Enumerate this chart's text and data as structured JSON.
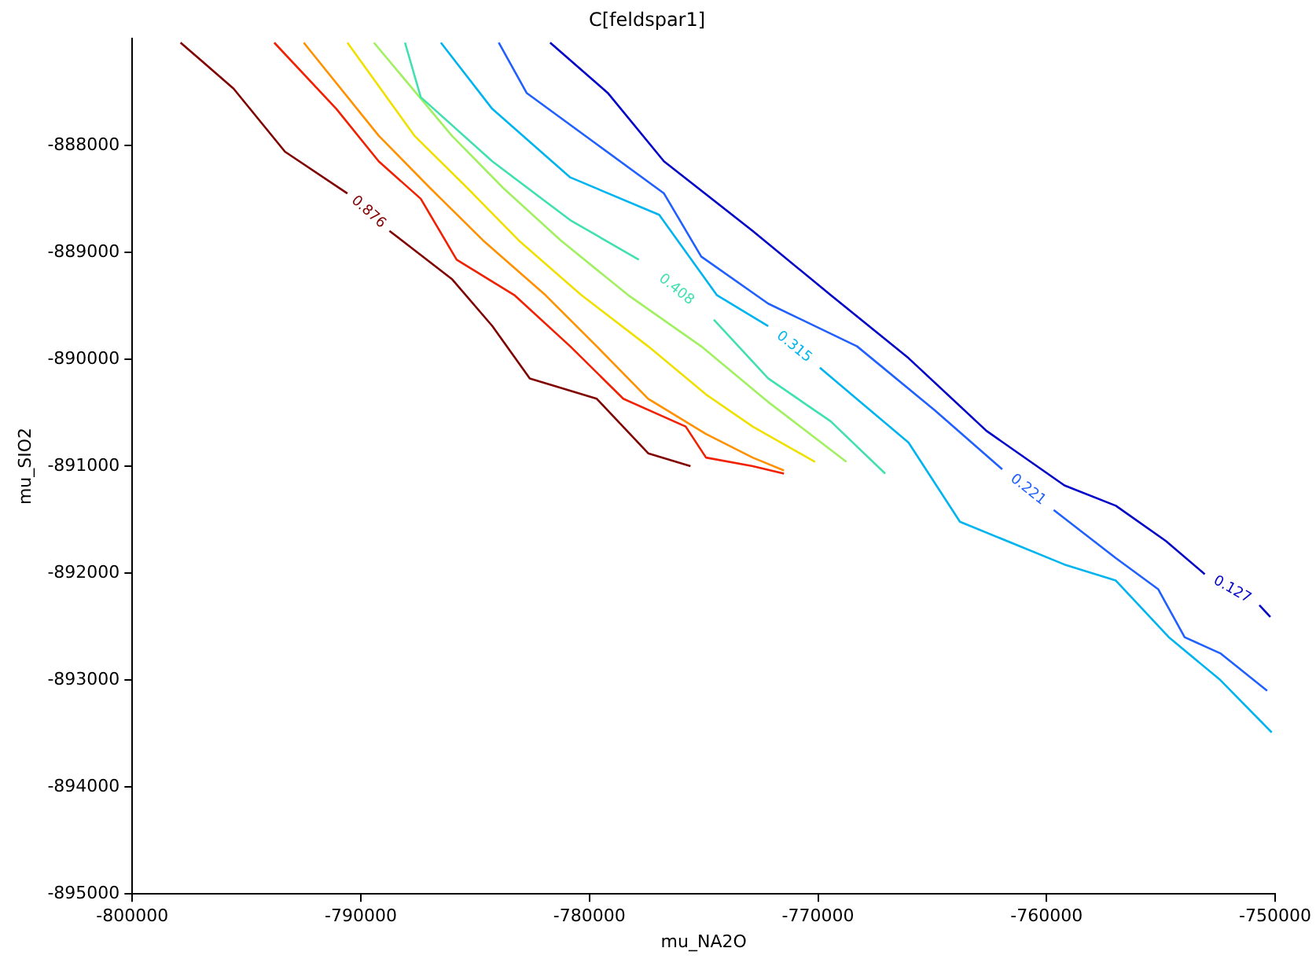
{
  "chart_data": {
    "type": "line",
    "title": "C[feldspar1]",
    "xlabel": "mu_NA2O",
    "ylabel": "mu_SIO2",
    "xlim": [
      -800000,
      -750000
    ],
    "xticks": [
      -800000,
      -790000,
      -780000,
      -770000,
      -760000,
      -750000
    ],
    "ylim": [
      -895000,
      -887000
    ],
    "yticks": [
      -895000,
      -894000,
      -893000,
      -892000,
      -891000,
      -890000,
      -889000,
      -888000
    ],
    "grid": false,
    "legend": false,
    "marker": "none",
    "line_style": "solid",
    "series": [
      {
        "name": "0.127",
        "color": "#0000c8",
        "x": [
          -781720,
          -779200,
          -776740,
          -772860,
          -769450,
          -766040,
          -762630,
          -759220,
          -756970,
          -754780,
          -753080,
          null,
          -750690,
          -750210
        ],
        "values": [
          -887040,
          -887510,
          -888150,
          -888800,
          -889400,
          -889990,
          -890670,
          -891180,
          -891370,
          -891700,
          -892010,
          null,
          -892300,
          -892410
        ]
      },
      {
        "name": "0.221",
        "color": "#2060ff",
        "x": [
          -783970,
          -782750,
          -779680,
          -776740,
          -775110,
          -772180,
          -768290,
          -764880,
          -761940,
          null,
          -759690,
          -756970,
          -755120,
          -753960,
          -752400,
          -750350
        ],
        "values": [
          -887040,
          -887510,
          -887990,
          -888450,
          -889040,
          -889480,
          -889880,
          -890480,
          -891030,
          null,
          -891410,
          -891860,
          -892150,
          -892600,
          -892750,
          -893100
        ]
      },
      {
        "name": "0.315",
        "color": "#00b4f0",
        "x": [
          -786500,
          -784250,
          -780840,
          -776950,
          -774430,
          -772180,
          null,
          -769920,
          -766040,
          -763790,
          -759220,
          -756970,
          -754650,
          -752400,
          -750150
        ],
        "values": [
          -887040,
          -887660,
          -888300,
          -888650,
          -889400,
          -889690,
          null,
          -890080,
          -890780,
          -891520,
          -891920,
          -892070,
          -892600,
          -893000,
          -893490
        ]
      },
      {
        "name": "0.408",
        "color": "#40e0b0",
        "x": [
          -788070,
          -787380,
          -784250,
          -780840,
          -777840,
          null,
          -774560,
          -772180,
          -769450,
          -767060
        ],
        "values": [
          -887040,
          -887550,
          -888150,
          -888700,
          -889070,
          null,
          -889630,
          -890180,
          -890580,
          -891070
        ]
      },
      {
        "color": "#a0f060",
        "x": [
          -789430,
          -786020,
          -783770,
          -781250,
          -778310,
          -775110,
          -772180,
          -768760
        ],
        "values": [
          -887040,
          -887910,
          -888400,
          -888890,
          -889400,
          -889880,
          -890400,
          -890960
        ]
      },
      {
        "color": "#f0e000",
        "x": [
          -790590,
          -787660,
          -785340,
          -783090,
          -780360,
          -777430,
          -774900,
          -772860,
          -770130
        ],
        "values": [
          -887040,
          -887910,
          -888400,
          -888890,
          -889400,
          -889880,
          -890330,
          -890630,
          -890960
        ]
      },
      {
        "color": "#ff9000",
        "x": [
          -792500,
          -789220,
          -786970,
          -784650,
          -781930,
          -779680,
          -777430,
          -774900,
          -772860,
          -771490
        ],
        "values": [
          -887040,
          -887910,
          -888400,
          -888890,
          -889400,
          -889880,
          -890370,
          -890700,
          -890920,
          -891040
        ]
      },
      {
        "color": "#f02000",
        "x": [
          -793790,
          -791070,
          -789220,
          -787380,
          -785810,
          -783290,
          -780840,
          -778520,
          -775790,
          -774900,
          -772860,
          -771490
        ],
        "values": [
          -887040,
          -887660,
          -888150,
          -888500,
          -889070,
          -889400,
          -889880,
          -890370,
          -890630,
          -890920,
          -891000,
          -891070
        ]
      },
      {
        "name": "0.876",
        "color": "#800000",
        "x": [
          -797890,
          -795570,
          -793320,
          -790590,
          null,
          -788750,
          -786020,
          -784250,
          -782610,
          -779680,
          -777430,
          -775580
        ],
        "values": [
          -887040,
          -887470,
          -888060,
          -888450,
          null,
          -888800,
          -889250,
          -889690,
          -890180,
          -890370,
          -890880,
          -891000
        ]
      }
    ]
  }
}
